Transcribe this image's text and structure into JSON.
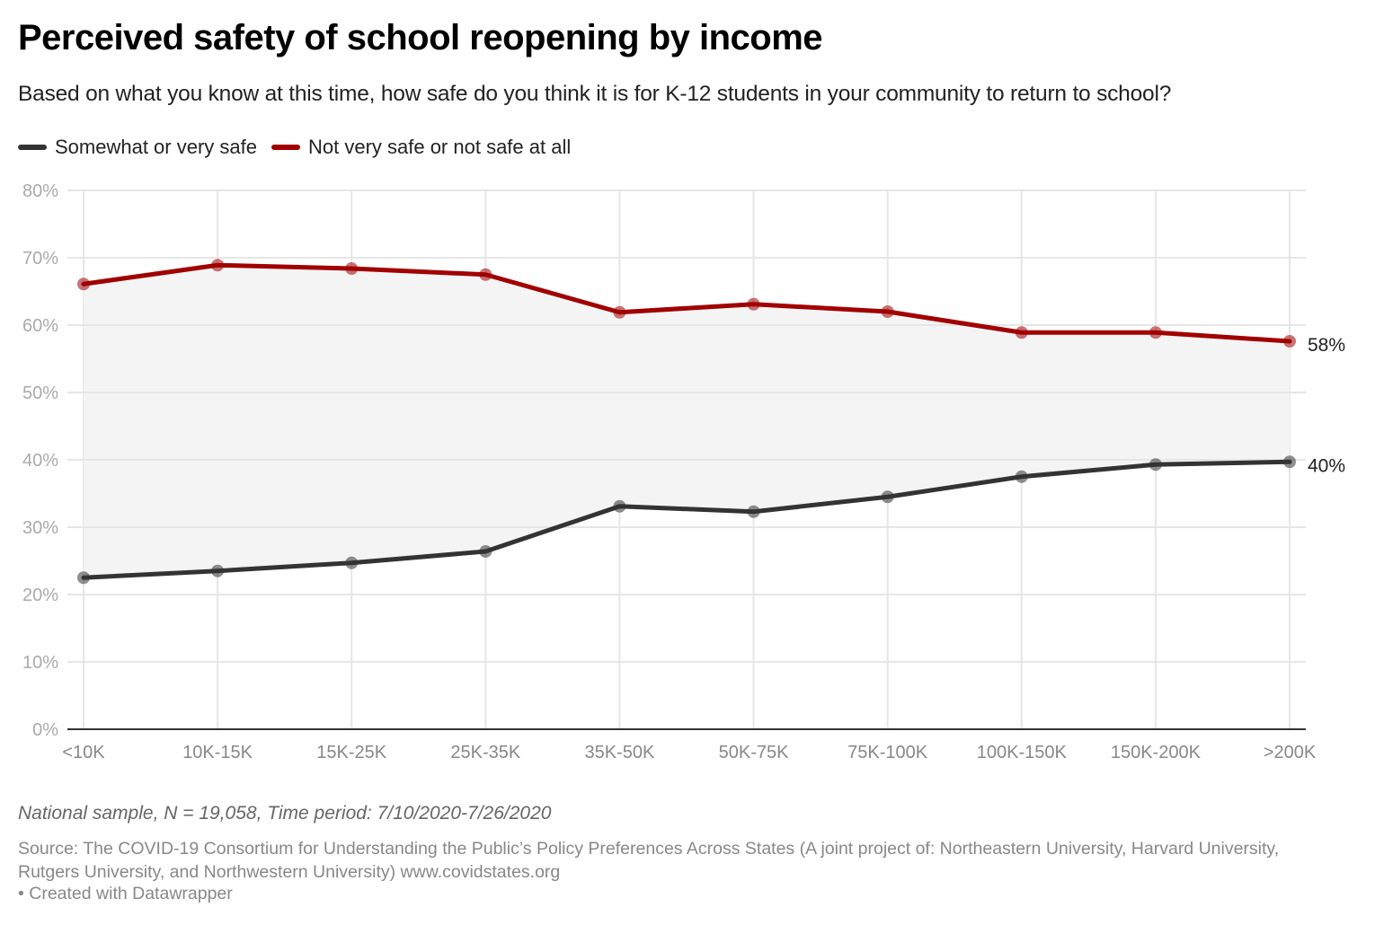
{
  "header": {
    "title": "Perceived safety of school reopening by income",
    "subtitle": "Based on what you know at this time, how safe do you think it is for K-12 students in your community to return to school?"
  },
  "legend": [
    {
      "label": "Somewhat or very safe",
      "color": "#333333"
    },
    {
      "label": "Not very safe or not safe at all",
      "color": "#a10000"
    }
  ],
  "chart_data": {
    "type": "line",
    "title": "Perceived safety of school reopening by income",
    "xlabel": "",
    "ylabel": "",
    "categories": [
      "<10K",
      "10K-15K",
      "15K-25K",
      "25K-35K",
      "35K-50K",
      "50K-75K",
      "75K-100K",
      "100K-150K",
      "150K-200K",
      ">200K"
    ],
    "series": [
      {
        "name": "Not very safe or not safe at all",
        "color": "#a10000",
        "values": [
          66.1,
          68.9,
          68.4,
          67.5,
          61.9,
          63.1,
          62.0,
          58.9,
          58.9,
          57.6
        ],
        "end_label": "58%"
      },
      {
        "name": "Somewhat or very safe",
        "color": "#333333",
        "values": [
          22.5,
          23.5,
          24.7,
          26.4,
          33.1,
          32.3,
          34.5,
          37.5,
          39.3,
          39.7
        ],
        "end_label": "40%"
      }
    ],
    "ylim": [
      0,
      80
    ],
    "yticks": [
      0,
      10,
      20,
      30,
      40,
      50,
      60,
      70,
      80
    ],
    "ytick_labels": [
      "0%",
      "10%",
      "20%",
      "30%",
      "40%",
      "50%",
      "60%",
      "70%",
      "80%"
    ],
    "grid": true,
    "area_between_color": "#f4f4f4",
    "legend_position": "top-left"
  },
  "footer": {
    "notes": "National sample, N = 19,058, Time period: 7/10/2020-7/26/2020",
    "source": "Source: The COVID-19 Consortium for Understanding the Public’s Policy Preferences Across States (A joint project of: Northeastern University, Harvard University, Rutgers University, and Northwestern University) www.covidstates.org",
    "credit": "• Created with Datawrapper"
  }
}
